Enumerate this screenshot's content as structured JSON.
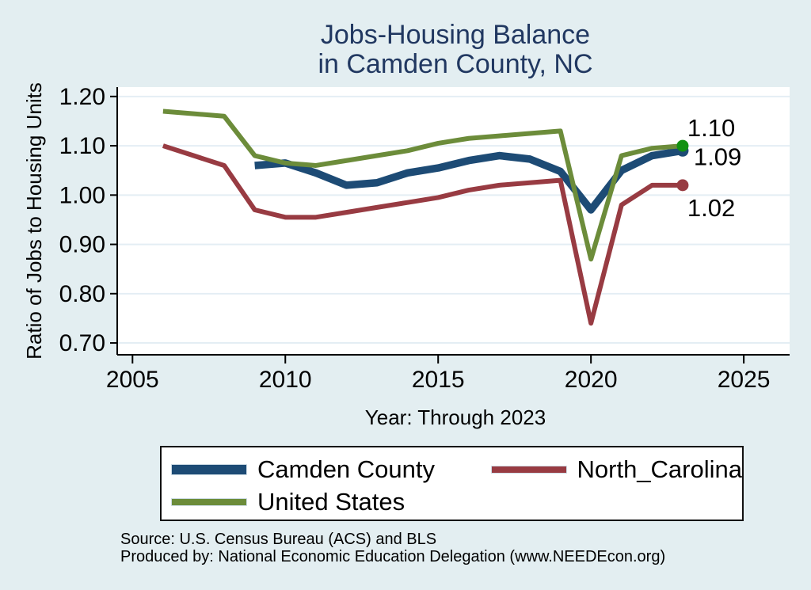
{
  "title": {
    "line1": "Jobs-Housing Balance",
    "line2": "in Camden County, NC"
  },
  "chart_data": {
    "type": "line",
    "title": "Jobs-Housing Balance in Camden County, NC",
    "xlabel": "Year: Through 2023",
    "ylabel": "Ratio of Jobs to Housing Units",
    "xlim": [
      2004.5,
      2026.5
    ],
    "ylim": [
      0.676,
      1.219
    ],
    "xticks": [
      2005,
      2010,
      2015,
      2020,
      2025
    ],
    "yticks": [
      0.7,
      0.8,
      0.9,
      1.0,
      1.1,
      1.2
    ],
    "grid": true,
    "legend_position": "bottom",
    "background": "#e3eef1",
    "plot_background": "#ffffff",
    "gridline_color": "#e4eef4",
    "series": [
      {
        "name": "Camden County",
        "color": "#1d4b75",
        "line_width": 9.5,
        "marker_color": "#1d4b75",
        "end_label": "1.09",
        "end_label_offset": [
          14,
          18
        ],
        "x": [
          2009,
          2010,
          2011,
          2012,
          2013,
          2014,
          2015,
          2016,
          2017,
          2018,
          2019,
          2020,
          2021,
          2022,
          2023
        ],
        "values": [
          1.06,
          1.065,
          1.045,
          1.02,
          1.025,
          1.045,
          1.055,
          1.07,
          1.08,
          1.073,
          1.048,
          0.97,
          1.05,
          1.08,
          1.09
        ]
      },
      {
        "name": "North_Carolina",
        "color": "#983b42",
        "line_width": 6,
        "marker_color": "#983b42",
        "end_label": "1.02",
        "end_label_offset": [
          6,
          39
        ],
        "x": [
          2006,
          2007,
          2008,
          2009,
          2010,
          2011,
          2012,
          2013,
          2014,
          2015,
          2016,
          2017,
          2018,
          2019,
          2020,
          2021,
          2022,
          2023
        ],
        "values": [
          1.1,
          1.08,
          1.06,
          0.97,
          0.955,
          0.955,
          0.965,
          0.975,
          0.985,
          0.995,
          1.01,
          1.02,
          1.025,
          1.03,
          0.74,
          0.98,
          1.02,
          1.02
        ]
      },
      {
        "name": "United States",
        "color": "#6c8c3a",
        "line_width": 6,
        "marker_color": "#119111",
        "end_label": "1.10",
        "end_label_offset": [
          6,
          -12
        ],
        "x": [
          2006,
          2007,
          2008,
          2009,
          2010,
          2011,
          2012,
          2013,
          2014,
          2015,
          2016,
          2017,
          2018,
          2019,
          2020,
          2021,
          2022,
          2023
        ],
        "values": [
          1.17,
          1.165,
          1.16,
          1.08,
          1.065,
          1.06,
          1.07,
          1.08,
          1.09,
          1.105,
          1.115,
          1.12,
          1.125,
          1.13,
          0.87,
          1.08,
          1.095,
          1.1
        ]
      }
    ]
  },
  "legend": {
    "items": [
      {
        "label": "Camden County",
        "color": "#1d4b75",
        "swatch_height": 12
      },
      {
        "label": "North_Carolina",
        "color": "#983b42",
        "swatch_height": 8
      },
      {
        "label": "United States",
        "color": "#6c8c3a",
        "swatch_height": 8
      }
    ]
  },
  "notes": {
    "source": "Source: U.S. Census Bureau (ACS) and BLS",
    "produced_by": "Produced by: National Economic Education Delegation (www.NEEDEcon.org)"
  }
}
